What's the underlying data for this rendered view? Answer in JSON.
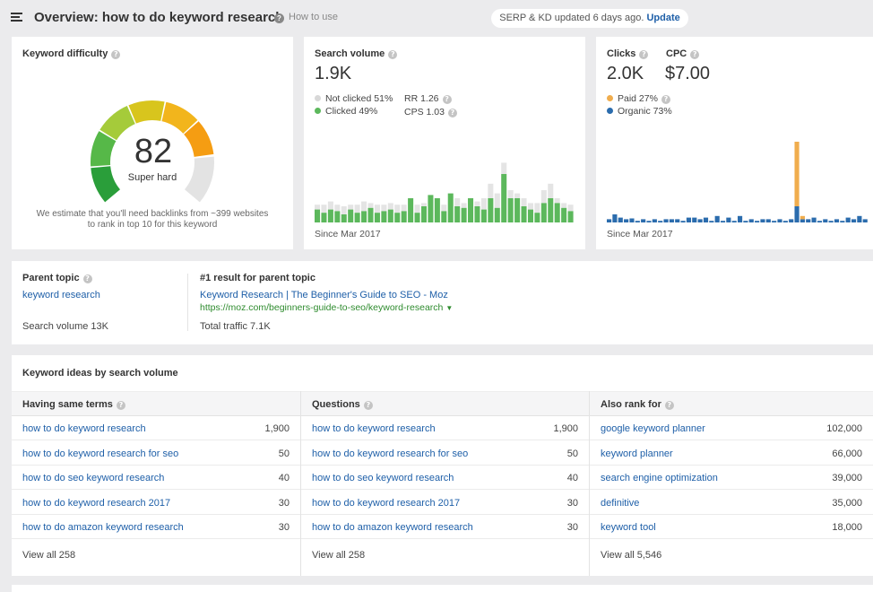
{
  "header": {
    "title": "Overview: how to do keyword research",
    "how_to_use": "How to use",
    "update_text": "SERP & KD updated 6 days ago.",
    "update_link": "Update"
  },
  "kd": {
    "title": "Keyword difficulty",
    "score": "82",
    "label": "Super hard",
    "note_line1": "We estimate that you'll need backlinks from ~399 websites",
    "note_line2": "to rank in top 10 for this keyword",
    "gauge_fraction": 0.82,
    "gauge_colors": [
      "#2a9e3a",
      "#56b848",
      "#a5cb3a",
      "#d8c51d",
      "#f2b51c",
      "#f59d12"
    ]
  },
  "search_volume": {
    "title": "Search volume",
    "value": "1.9K",
    "not_clicked": "Not clicked 51%",
    "clicked": "Clicked 49%",
    "rr": "RR 1.26",
    "cps": "CPS 1.03",
    "since": "Since Mar 2017",
    "colors": {
      "clicked": "#5cb85c",
      "not_clicked": "#e4e4e4"
    },
    "bars": [
      {
        "c": 0.16,
        "t": 0.22
      },
      {
        "c": 0.12,
        "t": 0.22
      },
      {
        "c": 0.16,
        "t": 0.26
      },
      {
        "c": 0.14,
        "t": 0.22
      },
      {
        "c": 0.1,
        "t": 0.2
      },
      {
        "c": 0.16,
        "t": 0.22
      },
      {
        "c": 0.12,
        "t": 0.22
      },
      {
        "c": 0.14,
        "t": 0.26
      },
      {
        "c": 0.18,
        "t": 0.24
      },
      {
        "c": 0.12,
        "t": 0.22
      },
      {
        "c": 0.14,
        "t": 0.22
      },
      {
        "c": 0.16,
        "t": 0.24
      },
      {
        "c": 0.12,
        "t": 0.22
      },
      {
        "c": 0.14,
        "t": 0.22
      },
      {
        "c": 0.3,
        "t": 0.3
      },
      {
        "c": 0.12,
        "t": 0.22
      },
      {
        "c": 0.2,
        "t": 0.24
      },
      {
        "c": 0.34,
        "t": 0.34
      },
      {
        "c": 0.3,
        "t": 0.3
      },
      {
        "c": 0.14,
        "t": 0.22
      },
      {
        "c": 0.36,
        "t": 0.36
      },
      {
        "c": 0.2,
        "t": 0.3
      },
      {
        "c": 0.18,
        "t": 0.24
      },
      {
        "c": 0.3,
        "t": 0.3
      },
      {
        "c": 0.2,
        "t": 0.26
      },
      {
        "c": 0.16,
        "t": 0.3
      },
      {
        "c": 0.3,
        "t": 0.48
      },
      {
        "c": 0.18,
        "t": 0.36
      },
      {
        "c": 0.6,
        "t": 0.74
      },
      {
        "c": 0.3,
        "t": 0.4
      },
      {
        "c": 0.3,
        "t": 0.36
      },
      {
        "c": 0.2,
        "t": 0.3
      },
      {
        "c": 0.16,
        "t": 0.24
      },
      {
        "c": 0.12,
        "t": 0.24
      },
      {
        "c": 0.24,
        "t": 0.4
      },
      {
        "c": 0.3,
        "t": 0.48
      },
      {
        "c": 0.24,
        "t": 0.3
      },
      {
        "c": 0.18,
        "t": 0.24
      },
      {
        "c": 0.14,
        "t": 0.22
      }
    ]
  },
  "clicks": {
    "title": "Clicks",
    "value": "2.0K",
    "cpc_title": "CPC",
    "cpc_value": "$7.00",
    "paid": "Paid 27%",
    "organic": "Organic 73%",
    "since": "Since Mar 2017",
    "colors": {
      "paid": "#f0ad4e",
      "organic": "#2b6cad"
    },
    "bars": [
      {
        "o": 0.04,
        "p": 0
      },
      {
        "o": 0.1,
        "p": 0
      },
      {
        "o": 0.06,
        "p": 0
      },
      {
        "o": 0.04,
        "p": 0
      },
      {
        "o": 0.05,
        "p": 0
      },
      {
        "o": 0.02,
        "p": 0
      },
      {
        "o": 0.04,
        "p": 0
      },
      {
        "o": 0.02,
        "p": 0
      },
      {
        "o": 0.04,
        "p": 0
      },
      {
        "o": 0.02,
        "p": 0
      },
      {
        "o": 0.04,
        "p": 0
      },
      {
        "o": 0.04,
        "p": 0
      },
      {
        "o": 0.04,
        "p": 0
      },
      {
        "o": 0.02,
        "p": 0
      },
      {
        "o": 0.06,
        "p": 0
      },
      {
        "o": 0.06,
        "p": 0
      },
      {
        "o": 0.04,
        "p": 0
      },
      {
        "o": 0.06,
        "p": 0
      },
      {
        "o": 0.02,
        "p": 0
      },
      {
        "o": 0.08,
        "p": 0
      },
      {
        "o": 0.02,
        "p": 0
      },
      {
        "o": 0.06,
        "p": 0
      },
      {
        "o": 0.02,
        "p": 0
      },
      {
        "o": 0.08,
        "p": 0
      },
      {
        "o": 0.02,
        "p": 0
      },
      {
        "o": 0.04,
        "p": 0
      },
      {
        "o": 0.02,
        "p": 0
      },
      {
        "o": 0.04,
        "p": 0
      },
      {
        "o": 0.04,
        "p": 0
      },
      {
        "o": 0.02,
        "p": 0
      },
      {
        "o": 0.04,
        "p": 0
      },
      {
        "o": 0.02,
        "p": 0
      },
      {
        "o": 0.04,
        "p": 0
      },
      {
        "o": 0.2,
        "p": 0.8
      },
      {
        "o": 0.04,
        "p": 0.04
      },
      {
        "o": 0.04,
        "p": 0
      },
      {
        "o": 0.06,
        "p": 0
      },
      {
        "o": 0.02,
        "p": 0
      },
      {
        "o": 0.04,
        "p": 0
      },
      {
        "o": 0.02,
        "p": 0
      },
      {
        "o": 0.04,
        "p": 0
      },
      {
        "o": 0.02,
        "p": 0
      },
      {
        "o": 0.06,
        "p": 0
      },
      {
        "o": 0.04,
        "p": 0
      },
      {
        "o": 0.08,
        "p": 0
      },
      {
        "o": 0.04,
        "p": 0
      }
    ]
  },
  "parent": {
    "title": "Parent topic",
    "keyword": "keyword research",
    "volume": "Search volume 13K",
    "result_title": "#1 result for parent topic",
    "result_link": "Keyword Research | The Beginner's Guide to SEO - Moz",
    "result_url": "https://moz.com/beginners-guide-to-seo/keyword-research",
    "traffic": "Total traffic 7.1K"
  },
  "ideas": {
    "title": "Keyword ideas by search volume",
    "columns": [
      {
        "header": "Having same terms",
        "rows": [
          {
            "kw": "how to do keyword research",
            "vol": "1,900"
          },
          {
            "kw": "how to do keyword research for seo",
            "vol": "50"
          },
          {
            "kw": "how to do seo keyword research",
            "vol": "40"
          },
          {
            "kw": "how to do keyword research 2017",
            "vol": "30"
          },
          {
            "kw": "how to do amazon keyword research",
            "vol": "30"
          }
        ],
        "view_all": "View all 258"
      },
      {
        "header": "Questions",
        "rows": [
          {
            "kw": "how to do keyword research",
            "vol": "1,900"
          },
          {
            "kw": "how to do keyword research for seo",
            "vol": "50"
          },
          {
            "kw": "how to do seo keyword research",
            "vol": "40"
          },
          {
            "kw": "how to do keyword research 2017",
            "vol": "30"
          },
          {
            "kw": "how to do amazon keyword research",
            "vol": "30"
          }
        ],
        "view_all": "View all 258"
      },
      {
        "header": "Also rank for",
        "rows": [
          {
            "kw": "google keyword planner",
            "vol": "102,000"
          },
          {
            "kw": "keyword planner",
            "vol": "66,000"
          },
          {
            "kw": "search engine optimization",
            "vol": "39,000"
          },
          {
            "kw": "definitive",
            "vol": "35,000"
          },
          {
            "kw": "keyword tool",
            "vol": "18,000"
          }
        ],
        "view_all": "View all 5,546"
      }
    ]
  }
}
